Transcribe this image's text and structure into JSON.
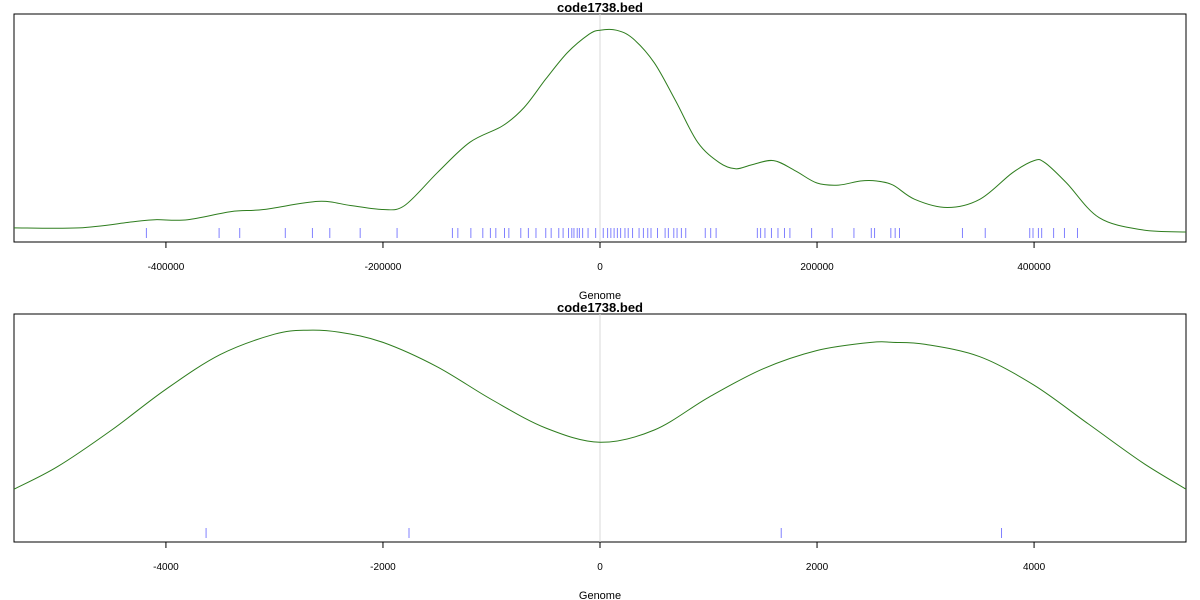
{
  "chart_data": [
    {
      "type": "line",
      "title": "code1738.bed",
      "xlabel": "Genome",
      "ylabel": "",
      "xlim": [
        -540000,
        540000
      ],
      "ylim": [
        0,
        1.04
      ],
      "grid": false,
      "center_line_x": 0,
      "x_ticks": [
        -400000,
        -200000,
        0,
        200000,
        400000
      ],
      "x_tick_labels": [
        "-400000",
        "-200000",
        "0",
        "200000",
        "400000"
      ],
      "colors": {
        "curve": "#2e7d1e",
        "rug": "#8080ff",
        "center": "#d9d9d9",
        "axis": "#000000"
      },
      "series": [
        {
          "x": [
            -540000,
            -480000,
            -430000,
            -410000,
            -380000,
            -340000,
            -310000,
            -260000,
            -230000,
            -200000,
            -180000,
            -150000,
            -120000,
            -90000,
            -70000,
            -50000,
            -30000,
            -10000,
            0,
            15000,
            30000,
            50000,
            70000,
            90000,
            110000,
            125000,
            140000,
            160000,
            180000,
            200000,
            220000,
            240000,
            255000,
            270000,
            290000,
            320000,
            350000,
            380000,
            400000,
            410000,
            430000,
            460000,
            500000,
            540000
          ],
          "values": [
            0.03,
            0.03,
            0.06,
            0.07,
            0.07,
            0.11,
            0.12,
            0.16,
            0.14,
            0.12,
            0.14,
            0.3,
            0.45,
            0.53,
            0.62,
            0.76,
            0.89,
            0.98,
            1.0,
            1.0,
            0.96,
            0.84,
            0.65,
            0.45,
            0.35,
            0.32,
            0.34,
            0.36,
            0.31,
            0.25,
            0.24,
            0.26,
            0.26,
            0.24,
            0.17,
            0.13,
            0.17,
            0.3,
            0.36,
            0.35,
            0.25,
            0.08,
            0.02,
            0.01
          ]
        }
      ],
      "rug": [
        -418000,
        -351000,
        -332000,
        -290000,
        -265000,
        -249000,
        -221000,
        -187000,
        -136000,
        -131000,
        -119000,
        -108000,
        -101000,
        -96000,
        -88000,
        -84000,
        -73000,
        -66000,
        -59000,
        -50000,
        -45000,
        -38000,
        -34000,
        -29000,
        -26000,
        -24000,
        -21000,
        -19000,
        -16000,
        -11000,
        -4000,
        3000,
        7000,
        10000,
        13000,
        16000,
        19000,
        23000,
        26000,
        30000,
        36000,
        40000,
        44000,
        47000,
        53000,
        60000,
        63000,
        68000,
        71000,
        75000,
        79000,
        97000,
        102000,
        107000,
        145000,
        148000,
        152000,
        158000,
        164000,
        170000,
        175000,
        195000,
        214000,
        234000,
        250000,
        253000,
        268000,
        272000,
        276000,
        334000,
        355000,
        396000,
        399000,
        404000,
        407000,
        418000,
        428000,
        440000
      ]
    },
    {
      "type": "line",
      "title": "code1738.bed",
      "xlabel": "Genome",
      "ylabel": "",
      "xlim": [
        -5400,
        5400
      ],
      "ylim": [
        0,
        1.04
      ],
      "grid": false,
      "center_line_x": 0,
      "x_ticks": [
        -4000,
        -2000,
        0,
        2000,
        4000
      ],
      "x_tick_labels": [
        "-4000",
        "-2000",
        "0",
        "2000",
        "4000"
      ],
      "colors": {
        "curve": "#2e7d1e",
        "rug": "#8080ff",
        "center": "#d9d9d9",
        "axis": "#000000"
      },
      "series": [
        {
          "x": [
            -5400,
            -5000,
            -4500,
            -4000,
            -3500,
            -3000,
            -2700,
            -2400,
            -2000,
            -1500,
            -1000,
            -500,
            0,
            500,
            1000,
            1500,
            2000,
            2500,
            2700,
            3000,
            3500,
            4000,
            4500,
            5000,
            5400
          ],
          "values": [
            0.22,
            0.33,
            0.51,
            0.71,
            0.88,
            0.98,
            1.0,
            0.99,
            0.94,
            0.82,
            0.66,
            0.52,
            0.45,
            0.51,
            0.67,
            0.81,
            0.9,
            0.94,
            0.94,
            0.93,
            0.87,
            0.73,
            0.54,
            0.35,
            0.22
          ]
        }
      ],
      "rug": [
        -3630,
        -1760,
        1670,
        3700
      ]
    }
  ]
}
